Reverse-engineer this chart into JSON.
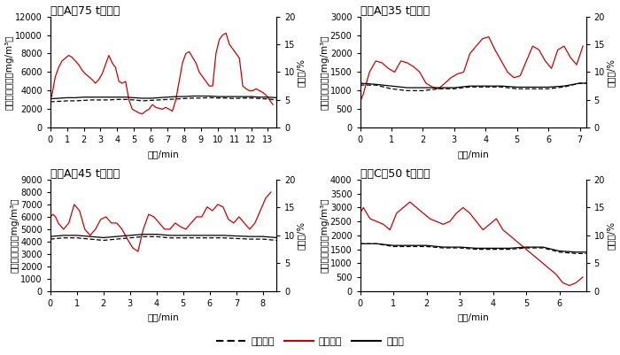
{
  "subplots": [
    {
      "title": "糖厂A（75 t锅炉）",
      "xlim": [
        0,
        13.5
      ],
      "xticks": [
        0,
        1,
        2,
        3,
        4,
        5,
        6,
        7,
        8,
        9,
        10,
        11,
        12,
        13
      ],
      "ylim_left": [
        0,
        12000
      ],
      "yticks_left": [
        0,
        2000,
        4000,
        6000,
        8000,
        10000,
        12000
      ],
      "ylim_right": [
        0,
        20
      ],
      "yticks_right": [
        0,
        5,
        10,
        15,
        20
      ],
      "co_x": [
        0,
        0.1,
        0.2,
        0.3,
        0.5,
        0.7,
        0.9,
        1.1,
        1.3,
        1.5,
        1.7,
        1.9,
        2.1,
        2.3,
        2.5,
        2.7,
        2.9,
        3.1,
        3.3,
        3.5,
        3.7,
        3.9,
        4.1,
        4.3,
        4.5,
        4.7,
        4.9,
        5.1,
        5.3,
        5.5,
        5.7,
        5.9,
        6.1,
        6.3,
        6.5,
        6.7,
        6.9,
        7.1,
        7.3,
        7.5,
        7.7,
        7.9,
        8.1,
        8.3,
        8.5,
        8.7,
        8.9,
        9.1,
        9.3,
        9.5,
        9.7,
        9.9,
        10.1,
        10.3,
        10.5,
        10.7,
        10.9,
        11.1,
        11.3,
        11.5,
        11.7,
        11.9,
        12.1,
        12.3,
        12.5,
        12.7,
        12.9,
        13.1,
        13.3
      ],
      "co_y": [
        3000,
        3500,
        4500,
        5500,
        6500,
        7200,
        7500,
        7800,
        7600,
        7200,
        6800,
        6200,
        5800,
        5500,
        5200,
        4800,
        5200,
        5800,
        6800,
        7800,
        7000,
        6500,
        5000,
        4800,
        5000,
        3000,
        2000,
        1800,
        1600,
        1500,
        1800,
        2000,
        2500,
        2200,
        2100,
        2000,
        2200,
        2000,
        1800,
        3000,
        5000,
        7000,
        8000,
        8200,
        7600,
        7000,
        6000,
        5500,
        5000,
        4500,
        4500,
        8000,
        9500,
        10000,
        10200,
        9000,
        8500,
        8000,
        7500,
        4500,
        4200,
        4000,
        4000,
        4200,
        4000,
        3800,
        3500,
        3000,
        2500
      ],
      "so2_x": [
        0,
        0.5,
        1.0,
        1.5,
        2.0,
        2.5,
        3.0,
        3.5,
        4.0,
        4.5,
        5.0,
        5.5,
        6.0,
        6.5,
        7.0,
        7.5,
        8.0,
        8.5,
        9.0,
        9.5,
        10.0,
        10.5,
        11.0,
        11.5,
        12.0,
        12.5,
        13.0,
        13.5
      ],
      "so2_y": [
        2800,
        2850,
        2900,
        2900,
        2950,
        3000,
        3000,
        3000,
        3050,
        3050,
        3000,
        2900,
        2950,
        3000,
        3050,
        3100,
        3150,
        3200,
        3200,
        3250,
        3200,
        3200,
        3150,
        3200,
        3200,
        3150,
        3100,
        3000
      ],
      "o2_x": [
        0,
        0.5,
        1.0,
        1.5,
        2.0,
        2.5,
        3.0,
        3.5,
        4.0,
        4.5,
        5.0,
        5.5,
        6.0,
        6.5,
        7.0,
        7.5,
        8.0,
        8.5,
        9.0,
        9.5,
        10.0,
        10.5,
        11.0,
        11.5,
        12.0,
        12.5,
        13.0,
        13.5
      ],
      "o2_y": [
        5.2,
        5.3,
        5.4,
        5.4,
        5.5,
        5.5,
        5.5,
        5.5,
        5.5,
        5.5,
        5.4,
        5.3,
        5.3,
        5.4,
        5.5,
        5.6,
        5.6,
        5.7,
        5.7,
        5.7,
        5.6,
        5.6,
        5.6,
        5.6,
        5.6,
        5.5,
        5.5,
        5.4
      ]
    },
    {
      "title": "糖厂A（35 t锅炉）",
      "xlim": [
        0,
        7.2
      ],
      "xticks": [
        0,
        1,
        2,
        3,
        4,
        5,
        6,
        7
      ],
      "ylim_left": [
        0,
        3000
      ],
      "yticks_left": [
        0,
        500,
        1000,
        1500,
        2000,
        2500,
        3000
      ],
      "ylim_right": [
        0,
        20
      ],
      "yticks_right": [
        0,
        5,
        10,
        15,
        20
      ],
      "co_x": [
        0,
        0.1,
        0.2,
        0.3,
        0.5,
        0.7,
        0.9,
        1.1,
        1.3,
        1.5,
        1.7,
        1.9,
        2.1,
        2.3,
        2.5,
        2.7,
        2.9,
        3.1,
        3.3,
        3.5,
        3.7,
        3.9,
        4.1,
        4.3,
        4.5,
        4.7,
        4.9,
        5.1,
        5.3,
        5.5,
        5.7,
        5.9,
        6.1,
        6.3,
        6.5,
        6.7,
        6.9,
        7.1
      ],
      "co_y": [
        700,
        900,
        1200,
        1500,
        1800,
        1750,
        1600,
        1500,
        1800,
        1750,
        1650,
        1500,
        1200,
        1100,
        1050,
        1200,
        1350,
        1450,
        1500,
        2000,
        2200,
        2400,
        2450,
        2100,
        1800,
        1500,
        1350,
        1400,
        1800,
        2200,
        2100,
        1800,
        1600,
        2100,
        2200,
        1900,
        1700,
        2200
      ],
      "so2_x": [
        0,
        0.5,
        1.0,
        1.5,
        2.0,
        2.5,
        3.0,
        3.5,
        4.0,
        4.5,
        5.0,
        5.5,
        6.0,
        6.5,
        7.0,
        7.2
      ],
      "so2_y": [
        1150,
        1150,
        1050,
        1000,
        1000,
        1050,
        1050,
        1100,
        1100,
        1100,
        1050,
        1050,
        1050,
        1100,
        1200,
        1200
      ],
      "o2_x": [
        0,
        0.5,
        1.0,
        1.5,
        2.0,
        2.5,
        3.0,
        3.5,
        4.0,
        4.5,
        5.0,
        5.5,
        6.0,
        6.5,
        7.0,
        7.2
      ],
      "o2_y": [
        8.0,
        7.8,
        7.5,
        7.2,
        7.2,
        7.2,
        7.2,
        7.5,
        7.5,
        7.5,
        7.3,
        7.3,
        7.3,
        7.5,
        8.0,
        8.0
      ]
    },
    {
      "title": "糖厂A（45 t锅炉）",
      "xlim": [
        0,
        8.5
      ],
      "xticks": [
        0,
        1,
        2,
        3,
        4,
        5,
        6,
        7,
        8
      ],
      "ylim_left": [
        0,
        9000
      ],
      "yticks_left": [
        0,
        1000,
        2000,
        3000,
        4000,
        5000,
        6000,
        7000,
        8000,
        9000
      ],
      "ylim_right": [
        0,
        20
      ],
      "yticks_right": [
        0,
        5,
        10,
        15,
        20
      ],
      "co_x": [
        0,
        0.1,
        0.2,
        0.3,
        0.5,
        0.7,
        0.9,
        1.1,
        1.3,
        1.5,
        1.7,
        1.9,
        2.1,
        2.3,
        2.5,
        2.7,
        2.9,
        3.1,
        3.3,
        3.5,
        3.7,
        3.9,
        4.1,
        4.3,
        4.5,
        4.7,
        4.9,
        5.1,
        5.3,
        5.5,
        5.7,
        5.9,
        6.1,
        6.3,
        6.5,
        6.7,
        6.9,
        7.1,
        7.3,
        7.5,
        7.7,
        7.9,
        8.1,
        8.3
      ],
      "co_y": [
        6000,
        6200,
        6000,
        5500,
        5000,
        5500,
        7000,
        6500,
        5000,
        4500,
        5000,
        5800,
        6000,
        5500,
        5500,
        5000,
        4200,
        3500,
        3200,
        5000,
        6200,
        6000,
        5500,
        5000,
        5000,
        5500,
        5200,
        5000,
        5500,
        6000,
        6000,
        6800,
        6500,
        7000,
        6800,
        5800,
        5500,
        6000,
        5500,
        5000,
        5500,
        6500,
        7500,
        8000
      ],
      "so2_x": [
        0,
        0.5,
        1.0,
        1.5,
        2.0,
        2.5,
        3.0,
        3.5,
        4.0,
        4.5,
        5.0,
        5.5,
        6.0,
        6.5,
        7.0,
        7.5,
        8.0,
        8.5
      ],
      "so2_y": [
        4200,
        4300,
        4300,
        4200,
        4100,
        4200,
        4300,
        4400,
        4400,
        4300,
        4300,
        4300,
        4300,
        4300,
        4250,
        4200,
        4200,
        4100
      ],
      "o2_x": [
        0,
        0.5,
        1.0,
        1.5,
        2.0,
        2.5,
        3.0,
        3.5,
        4.0,
        4.5,
        5.0,
        5.5,
        6.0,
        6.5,
        7.0,
        7.5,
        8.0,
        8.5
      ],
      "o2_y": [
        9.8,
        10.0,
        10.0,
        9.8,
        9.6,
        9.8,
        10.0,
        10.2,
        10.2,
        10.0,
        10.0,
        10.0,
        10.0,
        10.0,
        9.9,
        9.8,
        9.8,
        9.6
      ]
    },
    {
      "title": "糖厂C（50 t锅炉）",
      "xlim": [
        0,
        6.8
      ],
      "xticks": [
        0,
        1,
        2,
        3,
        4,
        5,
        6
      ],
      "ylim_left": [
        0,
        4000
      ],
      "yticks_left": [
        0,
        500,
        1000,
        1500,
        2000,
        2500,
        3000,
        3500,
        4000
      ],
      "ylim_right": [
        0,
        20
      ],
      "yticks_right": [
        0,
        5,
        10,
        15,
        20
      ],
      "co_x": [
        0,
        0.1,
        0.2,
        0.3,
        0.5,
        0.7,
        0.9,
        1.1,
        1.3,
        1.5,
        1.7,
        1.9,
        2.1,
        2.3,
        2.5,
        2.7,
        2.9,
        3.1,
        3.3,
        3.5,
        3.7,
        3.9,
        4.1,
        4.3,
        4.5,
        4.7,
        4.9,
        5.1,
        5.3,
        5.5,
        5.7,
        5.9,
        6.1,
        6.3,
        6.5,
        6.7
      ],
      "co_y": [
        2800,
        3000,
        2800,
        2600,
        2500,
        2400,
        2200,
        2800,
        3000,
        3200,
        3000,
        2800,
        2600,
        2500,
        2400,
        2500,
        2800,
        3000,
        2800,
        2500,
        2200,
        2400,
        2600,
        2200,
        2000,
        1800,
        1600,
        1400,
        1200,
        1000,
        800,
        600,
        300,
        200,
        300,
        500
      ],
      "so2_x": [
        0,
        0.5,
        1.0,
        1.5,
        2.0,
        2.5,
        3.0,
        3.5,
        4.0,
        4.5,
        5.0,
        5.5,
        6.0,
        6.5,
        6.8
      ],
      "so2_y": [
        1700,
        1700,
        1600,
        1600,
        1600,
        1550,
        1550,
        1500,
        1500,
        1500,
        1550,
        1550,
        1400,
        1350,
        1350
      ],
      "o2_x": [
        0,
        0.5,
        1.0,
        1.5,
        2.0,
        2.5,
        3.0,
        3.5,
        4.0,
        4.5,
        5.0,
        5.5,
        6.0,
        6.5,
        6.8
      ],
      "o2_y": [
        8.5,
        8.5,
        8.2,
        8.2,
        8.2,
        7.9,
        7.9,
        7.7,
        7.7,
        7.7,
        7.9,
        7.9,
        7.2,
        7.0,
        7.0
      ]
    }
  ],
  "xlabel": "时间/min",
  "ylabel_left": "污染物浓度／（mg/m³）",
  "ylabel_right": "含氧量/%",
  "legend_labels": [
    "二氧化硫",
    "一氧化碳",
    "含氧量"
  ],
  "legend_colors": [
    "#000000",
    "#cc0000",
    "#000000"
  ],
  "background_color": "#ffffff",
  "title_fontsize": 9,
  "label_fontsize": 7.5,
  "tick_fontsize": 7
}
